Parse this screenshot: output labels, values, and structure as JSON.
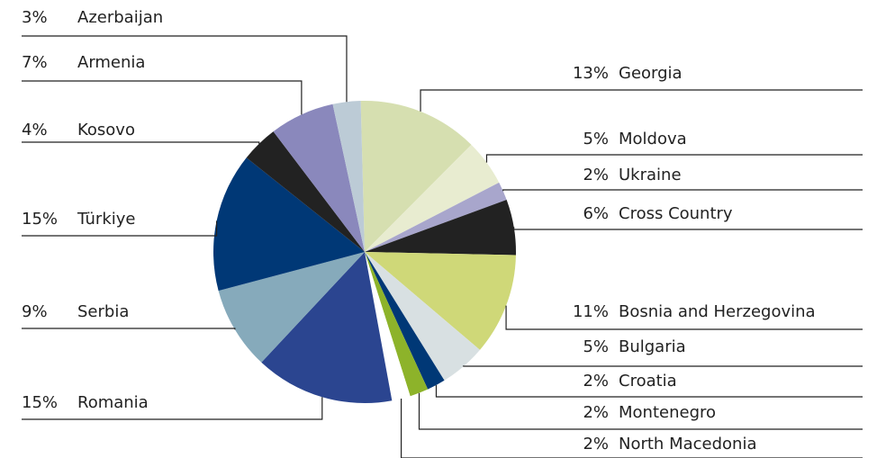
{
  "chart_data": {
    "type": "pie",
    "categories": [
      "Georgia",
      "Moldova",
      "Ukraine",
      "Cross Country",
      "Bosnia and Herzegovina",
      "Bulgaria",
      "Croatia",
      "Montenegro",
      "North Macedonia",
      "Romania",
      "Serbia",
      "Türkiye",
      "Kosovo",
      "Armenia",
      "Azerbaijan"
    ],
    "values": [
      13,
      5,
      2,
      6,
      11,
      5,
      2,
      2,
      2,
      15,
      9,
      15,
      4,
      7,
      3
    ],
    "value_labels": [
      "13%",
      "5%",
      "2%",
      "6%",
      "11%",
      "5%",
      "2%",
      "2%",
      "2%",
      "15%",
      "9%",
      "15%",
      "4%",
      "7%",
      "3%"
    ],
    "colors": [
      "#d6dfb0",
      "#e8ecd0",
      "#a8a6cc",
      "#222222",
      "#cfd878",
      "#d8e0e2",
      "#003876",
      "#8db32a",
      "#ffffff",
      "#2b4590",
      "#86aabb",
      "#003876",
      "#222222",
      "#8a88bc",
      "#bccbd6"
    ]
  }
}
